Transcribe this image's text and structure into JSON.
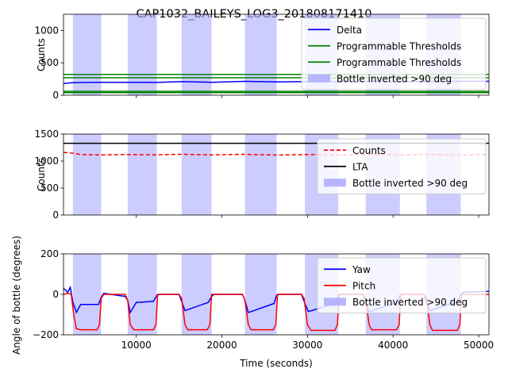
{
  "figure_title": "CAP1032_BAILEYS_LOG3_201808171410",
  "chart_data": [
    {
      "type": "line",
      "ylabel": "Counts",
      "xlim": [
        1500,
        51200
      ],
      "ylim": [
        0,
        1250
      ],
      "yticks": [
        0,
        500,
        1000
      ],
      "xticks": [
        10000,
        20000,
        30000,
        40000,
        50000
      ],
      "show_xticklabels": false,
      "inverted_spans": [
        [
          2600,
          5900
        ],
        [
          9000,
          12400
        ],
        [
          15300,
          18800
        ],
        [
          22700,
          26400
        ],
        [
          29700,
          33600
        ],
        [
          36800,
          40800
        ],
        [
          43900,
          47900
        ]
      ],
      "series": [
        {
          "name": "Delta",
          "color": "#0000ff",
          "x": [
            1500,
            2600,
            5900,
            9000,
            12400,
            15300,
            18800,
            22700,
            26400,
            29700,
            33600,
            36800,
            40800,
            43900,
            47900,
            51200
          ],
          "values": [
            180,
            195,
            200,
            200,
            197,
            210,
            200,
            215,
            205,
            210,
            212,
            215,
            210,
            212,
            215,
            215
          ]
        },
        {
          "name": "Programmable Thresholds",
          "color": "#008000",
          "x": [
            1500,
            51200
          ],
          "values": [
            320,
            320
          ]
        },
        {
          "name": "Programmable Thresholds",
          "color": "#008000",
          "x": [
            1500,
            51200
          ],
          "values": [
            270,
            270
          ]
        },
        {
          "name": "",
          "color": "#008000",
          "x": [
            1500,
            51200
          ],
          "values": [
            60,
            60
          ]
        },
        {
          "name": "",
          "color": "#008000",
          "x": [
            1500,
            51200
          ],
          "values": [
            40,
            40
          ]
        }
      ],
      "legend": [
        {
          "label": "Delta",
          "kind": "line",
          "color": "#0000ff"
        },
        {
          "label": "Programmable Thresholds",
          "kind": "line",
          "color": "#008000"
        },
        {
          "label": "Programmable Thresholds",
          "kind": "line",
          "color": "#008000"
        },
        {
          "label": "Bottle inverted >90 deg",
          "kind": "patch",
          "color": "#aaaaff"
        }
      ],
      "legend_position": "top-right"
    },
    {
      "type": "line",
      "ylabel": "Counts",
      "xlim": [
        1500,
        51200
      ],
      "ylim": [
        0,
        1500
      ],
      "yticks": [
        0,
        500,
        1000,
        1500
      ],
      "xticks": [
        10000,
        20000,
        30000,
        40000,
        50000
      ],
      "show_xticklabels": false,
      "inverted_spans": [
        [
          2600,
          5900
        ],
        [
          9000,
          12400
        ],
        [
          15300,
          18800
        ],
        [
          22700,
          26400
        ],
        [
          29700,
          33600
        ],
        [
          36800,
          40800
        ],
        [
          43900,
          47900
        ]
      ],
      "series": [
        {
          "name": "Counts",
          "color": "#ff0000",
          "dash": true,
          "x": [
            1500,
            2600,
            3500,
            5900,
            9000,
            12400,
            15300,
            18800,
            22700,
            26400,
            29700,
            33600,
            36800,
            40800,
            43900,
            47900,
            51200
          ],
          "values": [
            1160,
            1145,
            1120,
            1115,
            1120,
            1115,
            1125,
            1115,
            1125,
            1110,
            1120,
            1115,
            1120,
            1115,
            1120,
            1115,
            1120
          ]
        },
        {
          "name": "LTA",
          "color": "#000000",
          "x": [
            1500,
            51200
          ],
          "values": [
            1330,
            1330
          ]
        }
      ],
      "legend": [
        {
          "label": "Counts",
          "kind": "dash",
          "color": "#ff0000"
        },
        {
          "label": "LTA",
          "kind": "line",
          "color": "#000000"
        },
        {
          "label": "Bottle inverted >90 deg",
          "kind": "patch",
          "color": "#aaaaff"
        }
      ],
      "legend_position": "center-right"
    },
    {
      "type": "line",
      "ylabel": "Angle of bottle (degrees)",
      "xlabel": "Time (seconds)",
      "xlim": [
        1500,
        51200
      ],
      "ylim": [
        -200,
        200
      ],
      "yticks": [
        -200,
        0,
        200
      ],
      "xticks": [
        10000,
        20000,
        30000,
        40000,
        50000
      ],
      "show_xticklabels": true,
      "inverted_spans": [
        [
          2600,
          5900
        ],
        [
          9000,
          12400
        ],
        [
          15300,
          18800
        ],
        [
          22700,
          26400
        ],
        [
          29700,
          33600
        ],
        [
          36800,
          40800
        ],
        [
          43900,
          47900
        ]
      ],
      "series": [
        {
          "name": "Yaw",
          "color": "#0000ff",
          "x": [
            1500,
            2000,
            2300,
            2600,
            3000,
            3500,
            5600,
            5900,
            6200,
            8700,
            9000,
            9300,
            10000,
            12000,
            12400,
            12700,
            15000,
            15300,
            15700,
            18400,
            18800,
            19100,
            22400,
            22700,
            23100,
            26100,
            26400,
            26700,
            29300,
            29700,
            30100,
            33300,
            33600,
            33900,
            36500,
            36800,
            37200,
            40500,
            40800,
            41100,
            43600,
            43900,
            44300,
            47600,
            47900,
            48200,
            51200
          ],
          "values": [
            30,
            10,
            35,
            -40,
            -90,
            -50,
            -50,
            -15,
            5,
            -10,
            -30,
            -90,
            -40,
            -35,
            -5,
            0,
            0,
            -35,
            -80,
            -40,
            -10,
            0,
            0,
            -30,
            -90,
            -45,
            -5,
            0,
            0,
            -45,
            -85,
            -45,
            -5,
            0,
            0,
            -40,
            -85,
            -40,
            -5,
            0,
            0,
            -40,
            -80,
            -35,
            0,
            10,
            15
          ]
        },
        {
          "name": "Pitch",
          "color": "#ff0000",
          "x": [
            1500,
            2000,
            2400,
            2700,
            3000,
            3500,
            5400,
            5700,
            5900,
            6200,
            8700,
            9000,
            9300,
            9700,
            12000,
            12300,
            12500,
            15000,
            15300,
            15700,
            16000,
            18300,
            18600,
            18800,
            22400,
            22700,
            23100,
            23400,
            26000,
            26300,
            26500,
            29300,
            29600,
            30000,
            30400,
            33200,
            33500,
            33700,
            36500,
            36800,
            37200,
            37500,
            40400,
            40700,
            40900,
            43600,
            43900,
            44300,
            44600,
            47500,
            47800,
            48000,
            51200
          ],
          "values": [
            0,
            5,
            0,
            -100,
            -170,
            -175,
            -175,
            -150,
            -20,
            0,
            0,
            -30,
            -150,
            -175,
            -175,
            -150,
            0,
            0,
            -20,
            -150,
            -175,
            -175,
            -150,
            0,
            0,
            -30,
            -150,
            -175,
            -175,
            -150,
            0,
            0,
            -20,
            -150,
            -178,
            -178,
            -150,
            0,
            0,
            -20,
            -150,
            -175,
            -175,
            -150,
            0,
            0,
            -20,
            -150,
            -178,
            -178,
            -150,
            0,
            0
          ]
        }
      ],
      "legend": [
        {
          "label": "Yaw",
          "kind": "line",
          "color": "#0000ff"
        },
        {
          "label": "Pitch",
          "kind": "line",
          "color": "#ff0000"
        },
        {
          "label": "Bottle inverted >90 deg",
          "kind": "patch",
          "color": "#aaaaff"
        }
      ],
      "legend_position": "top-right"
    }
  ]
}
